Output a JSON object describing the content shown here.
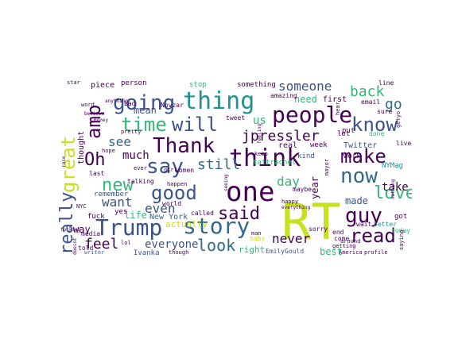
{
  "wordcloud": {
    "palette": {
      "dark": "#440154",
      "indigo": "#3b528b",
      "blue": "#31688e",
      "teal": "#21918c",
      "green": "#35b779",
      "lime": "#90d743",
      "yellow": "#c8e020"
    },
    "words": {
      "rt": "RT",
      "one": "one",
      "think": "think",
      "people": "people",
      "thing": "thing",
      "going": "going",
      "trump": "Trump",
      "story": "story",
      "thank": "Thank",
      "say": "say",
      "will": "will",
      "time": "time",
      "great": "great",
      "really": "really",
      "know": "know",
      "make": "make",
      "now": "now",
      "love": "love",
      "guy": "guy",
      "read": "read",
      "good": "good",
      "said": "said",
      "new": "new",
      "amp": "amp",
      "oh": "Oh",
      "jpressler": "jpressler",
      "someone": "someone",
      "look": "look",
      "feel": "feel",
      "never": "never",
      "want": "want",
      "still": "still",
      "back": "back",
      "go": "go",
      "see": "see",
      "much": "much",
      "even": "even",
      "life": "life",
      "everyone": "everyone",
      "day": "day",
      "year": "year",
      "made": "made",
      "take": "take",
      "us": "us",
      "mean": "mean",
      "need": "need",
      "way": "way",
      "thought": "thought",
      "best": "best",
      "right": "right",
      "first": "first",
      "something": "something",
      "last": "last",
      "world": "world",
      "lol": "lol",
      "actually": "actually",
      "new_york": "New York",
      "nymag": "NYMag",
      "ivanka": "Ivanka",
      "emilygould": "EmilyGould",
      "twitter": "Twitter",
      "real": "real",
      "kind": "kind",
      "week": "week",
      "work": "work",
      "better": "better",
      "got": "got",
      "wait": "wait",
      "today": "today",
      "piece": "piece",
      "person": "person",
      "bad": "bad",
      "tweet": "tweet",
      "stop": "stop",
      "women": "women",
      "yes": "yes",
      "fuck": "fuck",
      "told": "told",
      "writer": "writer",
      "remember": "remember",
      "media": "media",
      "talking": "talking",
      "called": "called",
      "maybe": "maybe",
      "happy": "happy",
      "sorry": "sorry",
      "baby": "baby",
      "though": "though",
      "america": "America",
      "profile": "profile",
      "getting": "getting",
      "come": "come",
      "end": "end",
      "lot": "lot",
      "done": "done",
      "sure": "sure",
      "email": "email",
      "line": "line",
      "star": "star",
      "pretty": "pretty",
      "hope": "hope",
      "ever": "ever",
      "saying": "saying",
      "anything": "anything",
      "everything": "everything",
      "amazing": "amazing",
      "girl": "girl",
      "happen": "happen",
      "keep": "keep",
      "man": "man",
      "feeling": "feeling",
      "nyc": "NYC",
      "put": "put",
      "getyo": "getyo",
      "around": "around",
      "seeing": "seeing",
      "mayor": "mayor",
      "hear": "hear",
      "word": "word",
      "rose": "rose",
      "doesnt": "doesnt",
      "live": "live",
      "nothing": "nothing",
      "believe": "believe",
      "novzar": "Novzar",
      "fucking": "fucking",
      "tattrachel": "tattrachel",
      "ad": "ad",
      "bit": "bit",
      "yr": "yr",
      "hurt": "hurt",
      "money": "money",
      "life2": "live",
      "bed": "bed",
      "use": "use",
      "hell": "hell",
      "cool": "cool",
      "uh": "uh",
      "ok": "ok",
      "tell": "tell",
      "old": "old",
      "show": "show"
    }
  }
}
